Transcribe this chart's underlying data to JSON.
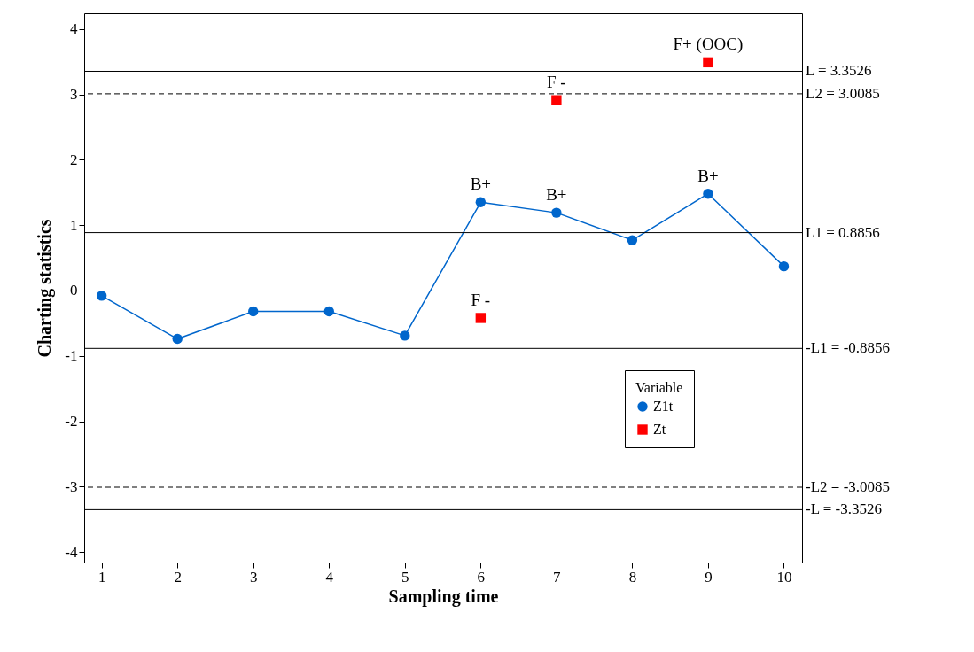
{
  "chart_data": {
    "type": "line",
    "xlabel": "Sampling time",
    "ylabel": "Charting statistics",
    "legend_title": "Variable",
    "x": [
      1,
      2,
      3,
      4,
      5,
      6,
      7,
      8,
      9,
      10
    ],
    "series": [
      {
        "name": "Z1t",
        "marker": "circle",
        "color": "#0066cc",
        "values": [
          -0.08,
          -0.74,
          -0.32,
          -0.32,
          -0.69,
          1.35,
          1.19,
          0.77,
          1.48,
          0.37
        ]
      },
      {
        "name": "Zt",
        "type": "scatter",
        "marker": "square",
        "color": "#ff0000",
        "x": [
          6,
          7,
          9
        ],
        "values": [
          -0.42,
          2.91,
          3.49
        ]
      }
    ],
    "xlim": [
      0.77,
      10.24
    ],
    "xticks": [
      1,
      2,
      3,
      4,
      5,
      6,
      7,
      8,
      9,
      10
    ],
    "ylim": [
      -4.16,
      4.24
    ],
    "yticks": [
      -4,
      -3,
      -2,
      -1,
      0,
      1,
      2,
      3,
      4
    ],
    "ref_lines": [
      {
        "axis": "y",
        "value": 3.3526,
        "label": "L = 3.3526",
        "line_style": "solid"
      },
      {
        "axis": "y",
        "value": 3.0085,
        "label": "L2 = 3.0085",
        "line_style": "dashed"
      },
      {
        "axis": "y",
        "value": 0.8856,
        "label": "L1 = 0.8856",
        "line_style": "solid"
      },
      {
        "axis": "y",
        "value": -0.8856,
        "label": "-L1 = -0.8856",
        "line_style": "solid"
      },
      {
        "axis": "y",
        "value": -3.0085,
        "label": "-L2 = -3.0085",
        "line_style": "dashed"
      },
      {
        "axis": "y",
        "value": -3.3526,
        "label": "-L = -3.3526",
        "line_style": "solid"
      }
    ],
    "annotations": [
      {
        "text": "B+",
        "x": 6,
        "y": 1.35
      },
      {
        "text": "B+",
        "x": 7,
        "y": 1.19
      },
      {
        "text": "B+",
        "x": 9,
        "y": 1.48
      },
      {
        "text": "F -",
        "x": 6,
        "y": -0.42
      },
      {
        "text": "F -",
        "x": 7,
        "y": 2.91
      },
      {
        "text": "F+ (OOC)",
        "x": 9,
        "y": 3.49
      }
    ],
    "grid": false,
    "legend": "bottom right"
  }
}
